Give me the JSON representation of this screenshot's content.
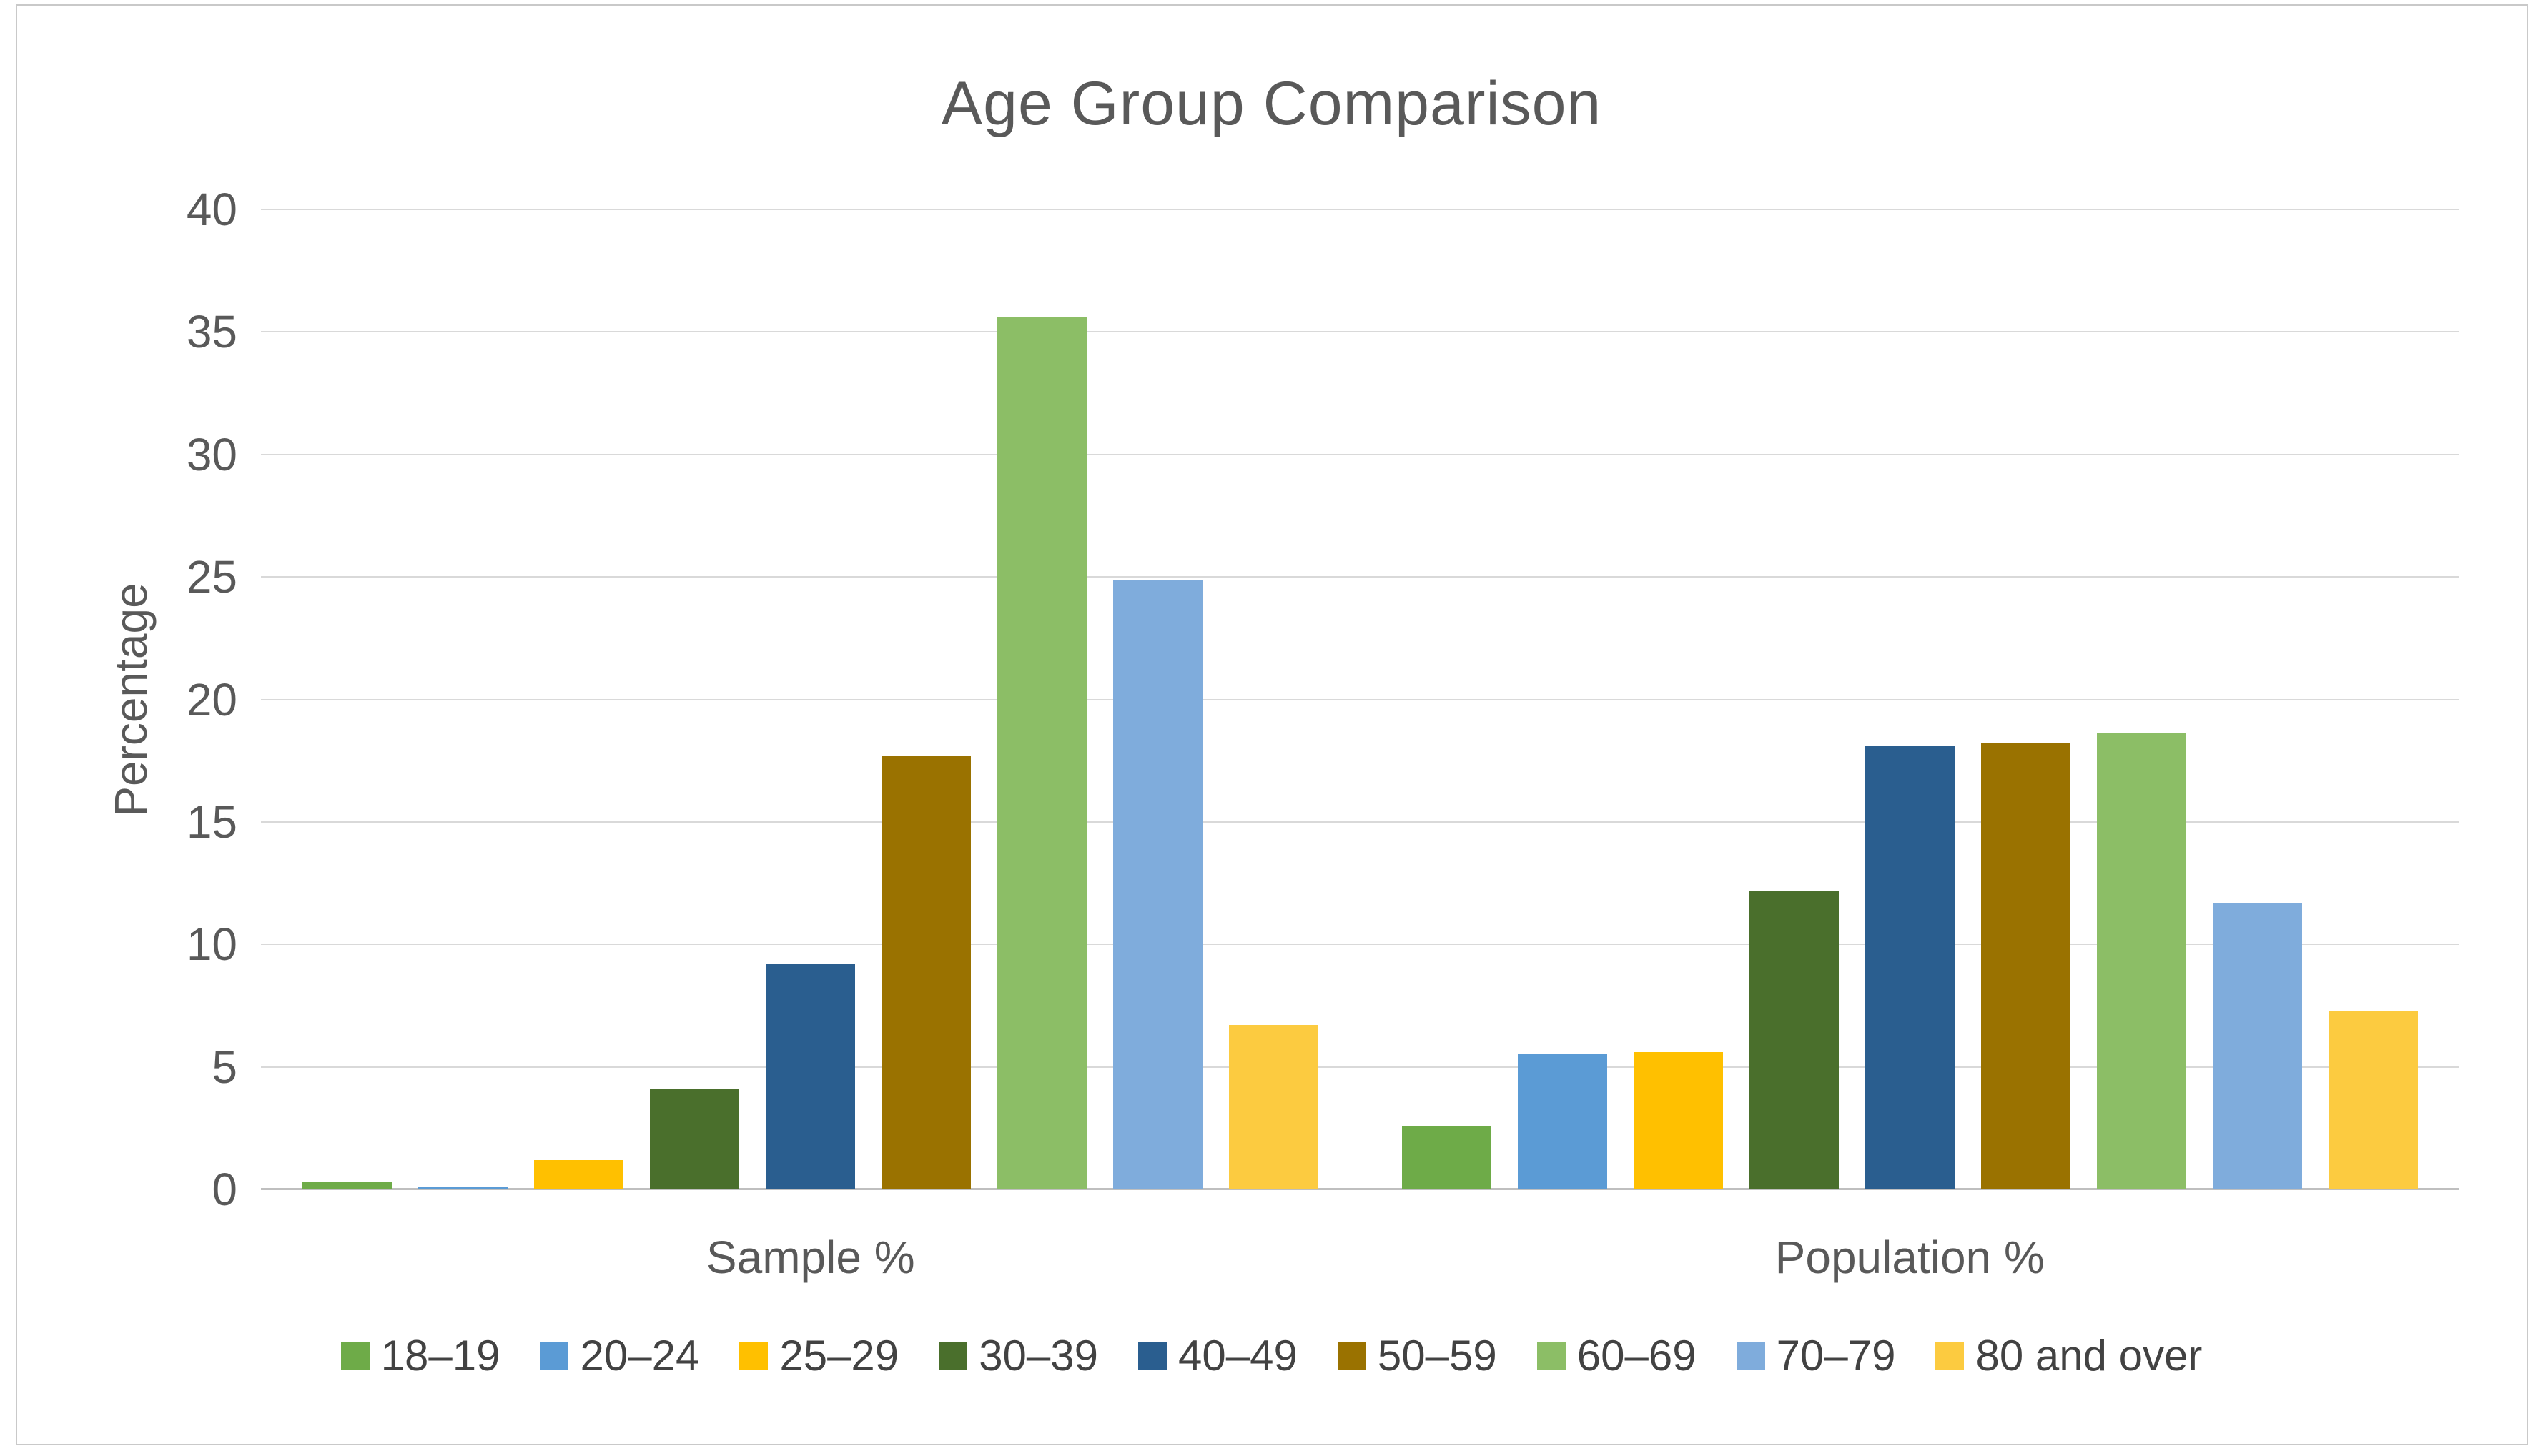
{
  "figure": {
    "title": "Age Group Comparison",
    "y_axis_title": "Percentage"
  },
  "chart_data": {
    "type": "bar",
    "title": "Age Group Comparison",
    "xlabel": "",
    "ylabel": "Percentage",
    "ylim": [
      0,
      40
    ],
    "yticks": [
      0,
      5,
      10,
      15,
      20,
      25,
      30,
      35,
      40
    ],
    "grid": true,
    "legend_position": "bottom",
    "categories": [
      "Sample %",
      "Population %"
    ],
    "series": [
      {
        "name": "18–19",
        "color": "#6EAB48",
        "values": [
          0.3,
          2.6
        ]
      },
      {
        "name": "20–24",
        "color": "#5B9BD5",
        "values": [
          0.1,
          5.5
        ]
      },
      {
        "name": "25–29",
        "color": "#FFC000",
        "values": [
          1.2,
          5.6
        ]
      },
      {
        "name": "30–39",
        "color": "#4A6F2C",
        "values": [
          4.1,
          12.2
        ]
      },
      {
        "name": "40–49",
        "color": "#2A5E8F",
        "values": [
          9.2,
          18.1
        ]
      },
      {
        "name": "50–59",
        "color": "#9A7200",
        "values": [
          17.7,
          18.2
        ]
      },
      {
        "name": "60–69",
        "color": "#8CBE66",
        "values": [
          35.6,
          18.6
        ]
      },
      {
        "name": "70–79",
        "color": "#7FACDC",
        "values": [
          24.9,
          11.7
        ]
      },
      {
        "name": "80 and over",
        "color": "#FCCB40",
        "values": [
          6.7,
          7.3
        ]
      }
    ]
  }
}
